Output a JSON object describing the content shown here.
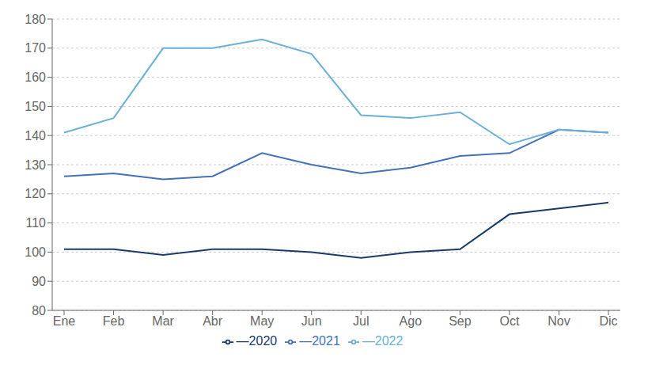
{
  "chart_data": {
    "type": "line",
    "categories": [
      "Ene",
      "Feb",
      "Mar",
      "Abr",
      "May",
      "Jun",
      "Jul",
      "Ago",
      "Sep",
      "Oct",
      "Nov",
      "Dic"
    ],
    "series": [
      {
        "name": "—2020",
        "color": "#1a3a6b",
        "values": [
          101,
          101,
          99,
          101,
          101,
          100,
          98,
          100,
          101,
          113,
          115,
          117
        ]
      },
      {
        "name": "—2021",
        "color": "#4472b8",
        "values": [
          126,
          127,
          125,
          126,
          134,
          130,
          127,
          129,
          133,
          134,
          142,
          141
        ]
      },
      {
        "name": "—2022",
        "color": "#6bb0d6",
        "values": [
          141,
          146,
          170,
          170,
          173,
          168,
          147,
          146,
          148,
          137,
          142,
          141
        ]
      }
    ],
    "ylim": [
      80,
      180
    ],
    "yticks": [
      80,
      90,
      100,
      110,
      120,
      130,
      140,
      150,
      160,
      170,
      180
    ],
    "grid": "y",
    "legend": "bottom",
    "marker": "none"
  }
}
